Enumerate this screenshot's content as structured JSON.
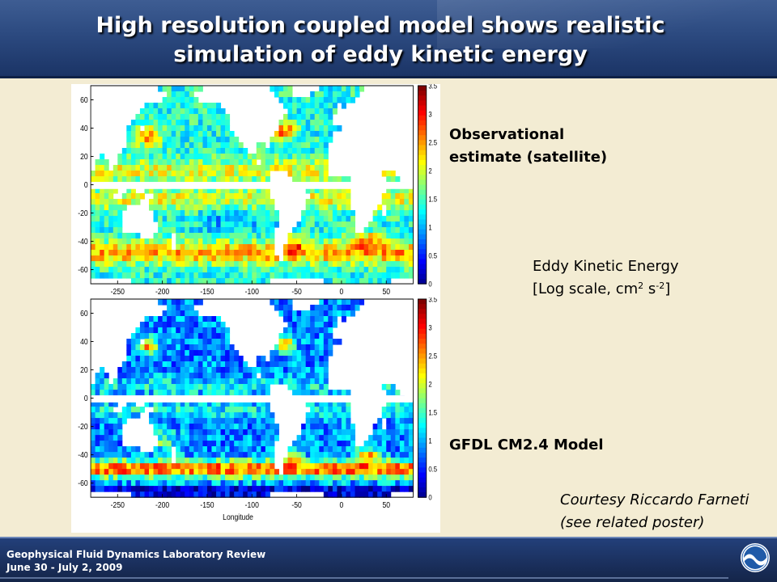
{
  "slide": {
    "title_line1": "High resolution coupled model shows realistic",
    "title_line2": "simulation of eddy kinetic energy",
    "label_observational_line1": "Observational",
    "label_observational_line2": "estimate (satellite)",
    "label_model": "GFDL CM2.4 Model",
    "eke_line1": "Eddy Kinetic Energy",
    "eke_line2_prefix": "[Log scale, cm",
    "eke_sup1": "2",
    "eke_mid": " s",
    "eke_sup2": "-2",
    "eke_suffix": "]",
    "courtesy_line1": "Courtesy Riccardo Farneti",
    "courtesy_line2": "(see related poster)"
  },
  "footer": {
    "line1": "Geophysical Fluid Dynamics Laboratory Review",
    "line2": "June 30 - July 2, 2009",
    "logo_icon": "noaa-logo-icon"
  },
  "chart_data": [
    {
      "type": "heatmap",
      "title": "",
      "xlabel": "",
      "ylabel": "",
      "x_ticks": [
        -250,
        -200,
        -150,
        -100,
        -50,
        0,
        50
      ],
      "y_ticks": [
        60,
        40,
        20,
        0,
        -20,
        -40,
        -60
      ],
      "colorbar_ticks": [
        3.5,
        3,
        2.5,
        2,
        1.5,
        1,
        0.5,
        0
      ],
      "xlim": [
        -280,
        80
      ],
      "ylim": [
        -70,
        70
      ],
      "color_range": [
        0,
        3.5
      ]
    },
    {
      "type": "heatmap",
      "title": "",
      "xlabel": "Longitude",
      "ylabel": "",
      "x_ticks": [
        -250,
        -200,
        -150,
        -100,
        -50,
        0,
        50
      ],
      "y_ticks": [
        60,
        40,
        20,
        0,
        -20,
        -40,
        -60
      ],
      "colorbar_ticks": [
        3.5,
        3,
        2.5,
        2,
        1.5,
        1,
        0.5,
        0
      ],
      "xlim": [
        -280,
        80
      ],
      "ylim": [
        -70,
        70
      ],
      "color_range": [
        0,
        3.5
      ]
    }
  ]
}
